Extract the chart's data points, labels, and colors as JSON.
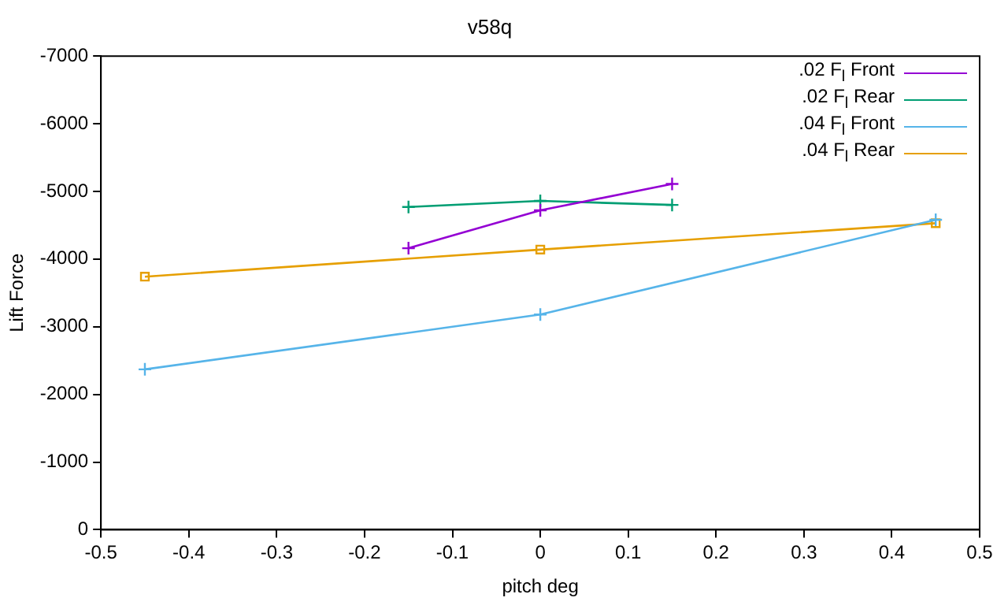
{
  "chart_data": {
    "type": "line",
    "title": "v58q",
    "xlabel": "pitch deg",
    "ylabel": "Lift Force",
    "xlim": [
      -0.5,
      0.5
    ],
    "xticks": [
      -0.5,
      -0.4,
      -0.3,
      -0.2,
      -0.1,
      0,
      0.1,
      0.2,
      0.3,
      0.4,
      0.5
    ],
    "ylim": [
      0,
      -7000
    ],
    "yticks": [
      0,
      -1000,
      -2000,
      -3000,
      -4000,
      -5000,
      -6000,
      -7000
    ],
    "grid": false,
    "legend": "top right",
    "line_style": "solid",
    "series": [
      {
        "name": ".02 F$_{l}$ Front",
        "color": "#9400d3",
        "marker": "cross",
        "x": [
          -0.15,
          0,
          0.15
        ],
        "values": [
          -4160,
          -4720,
          -5110
        ]
      },
      {
        "name": ".02 F$_{l}$ Rear",
        "color": "#009e73",
        "marker": "cross",
        "x": [
          -0.15,
          0,
          0.15
        ],
        "values": [
          -4770,
          -4860,
          -4800
        ]
      },
      {
        "name": ".04 F$_{l}$ Front",
        "color": "#56b4e9",
        "marker": "cross",
        "x": [
          -0.45,
          0,
          0.45
        ],
        "values": [
          -2370,
          -3180,
          -4580
        ]
      },
      {
        "name": ".04 F$_{l}$ Rear",
        "color": "#e69f00",
        "marker": "square",
        "x": [
          -0.45,
          0,
          0.45
        ],
        "values": [
          -3740,
          -4140,
          -4530
        ]
      }
    ]
  }
}
